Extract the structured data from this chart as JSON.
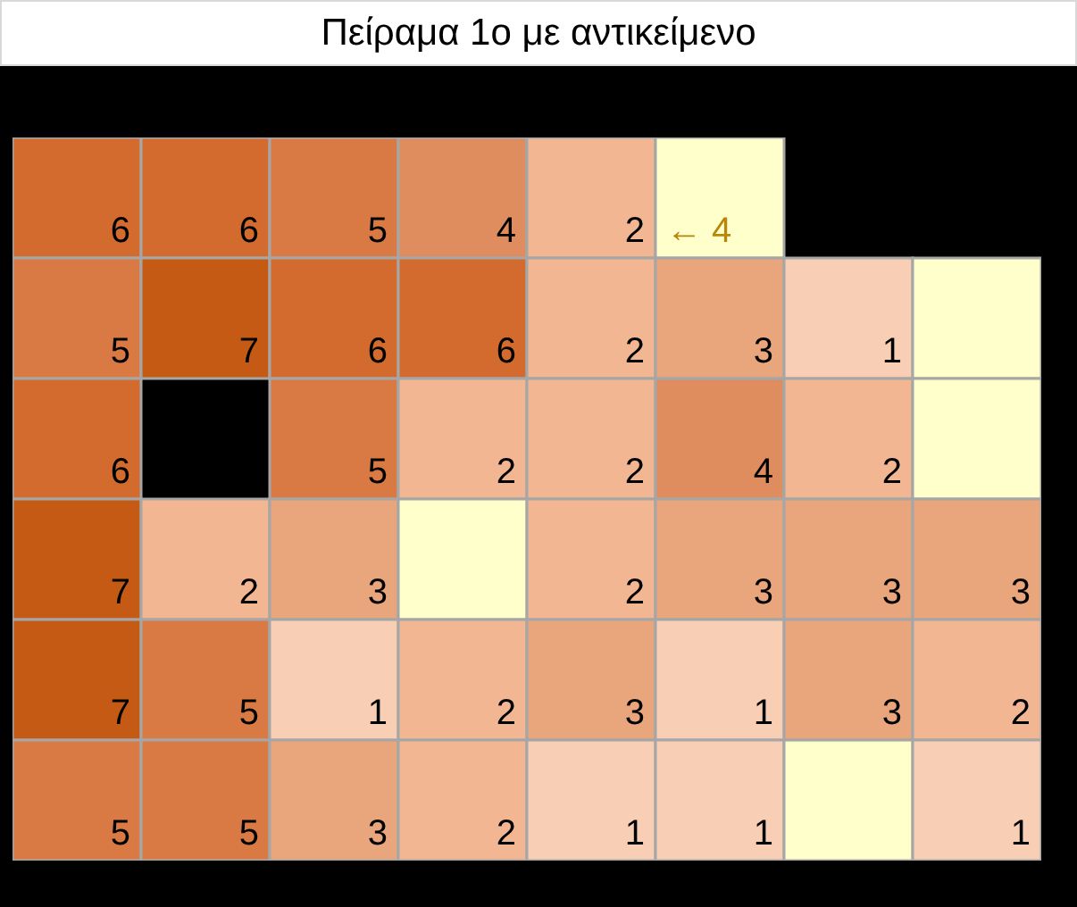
{
  "chart_data": {
    "type": "heatmap",
    "title": "Πείραμα 1ο με αντικείμενο",
    "categories": [
      null,
      null,
      null,
      null,
      null,
      null,
      null,
      null
    ],
    "y_categories": [
      null,
      null,
      null,
      null,
      null,
      null
    ],
    "cells": [
      [
        6,
        6,
        5,
        4,
        2,
        null,
        null,
        null
      ],
      [
        5,
        7,
        6,
        6,
        2,
        3,
        1,
        null
      ],
      [
        6,
        null,
        5,
        2,
        2,
        4,
        2,
        null
      ],
      [
        7,
        2,
        3,
        null,
        2,
        3,
        3,
        3
      ],
      [
        7,
        5,
        1,
        2,
        3,
        1,
        3,
        2
      ],
      [
        5,
        5,
        3,
        2,
        1,
        1,
        null,
        1
      ]
    ],
    "annotations": [
      "← 4"
    ],
    "data_labels": true,
    "colors": [
      [
        "#d36b2f",
        "#d36b2f",
        "#d97a44",
        "#df8d5e",
        "#f3b693",
        "#ffffcc",
        "#000000",
        "#000000"
      ],
      [
        "#d97a44",
        "#c55a14",
        "#d36b2f",
        "#d36b2f",
        "#f3b693",
        "#e9a57c",
        "#f8cfb4",
        "#ffffcc"
      ],
      [
        "#d36b2f",
        "#000000",
        "#d97a44",
        "#f3b693",
        "#f3b693",
        "#df8d5e",
        "#f3b693",
        "#ffffcc"
      ],
      [
        "#c55a14",
        "#f3b693",
        "#e9a57c",
        "#ffffcc",
        "#f3b693",
        "#e9a57c",
        "#e9a57c",
        "#e9a57c"
      ],
      [
        "#c55a14",
        "#d97a44",
        "#f8cfb4",
        "#f3b693",
        "#e9a57c",
        "#f8cfb4",
        "#e9a57c",
        "#f3b693"
      ],
      [
        "#d97a44",
        "#d97a44",
        "#e9a57c",
        "#f3b693",
        "#f8cfb4",
        "#f8cfb4",
        "#ffffcc",
        "#f8cfb4"
      ]
    ]
  }
}
